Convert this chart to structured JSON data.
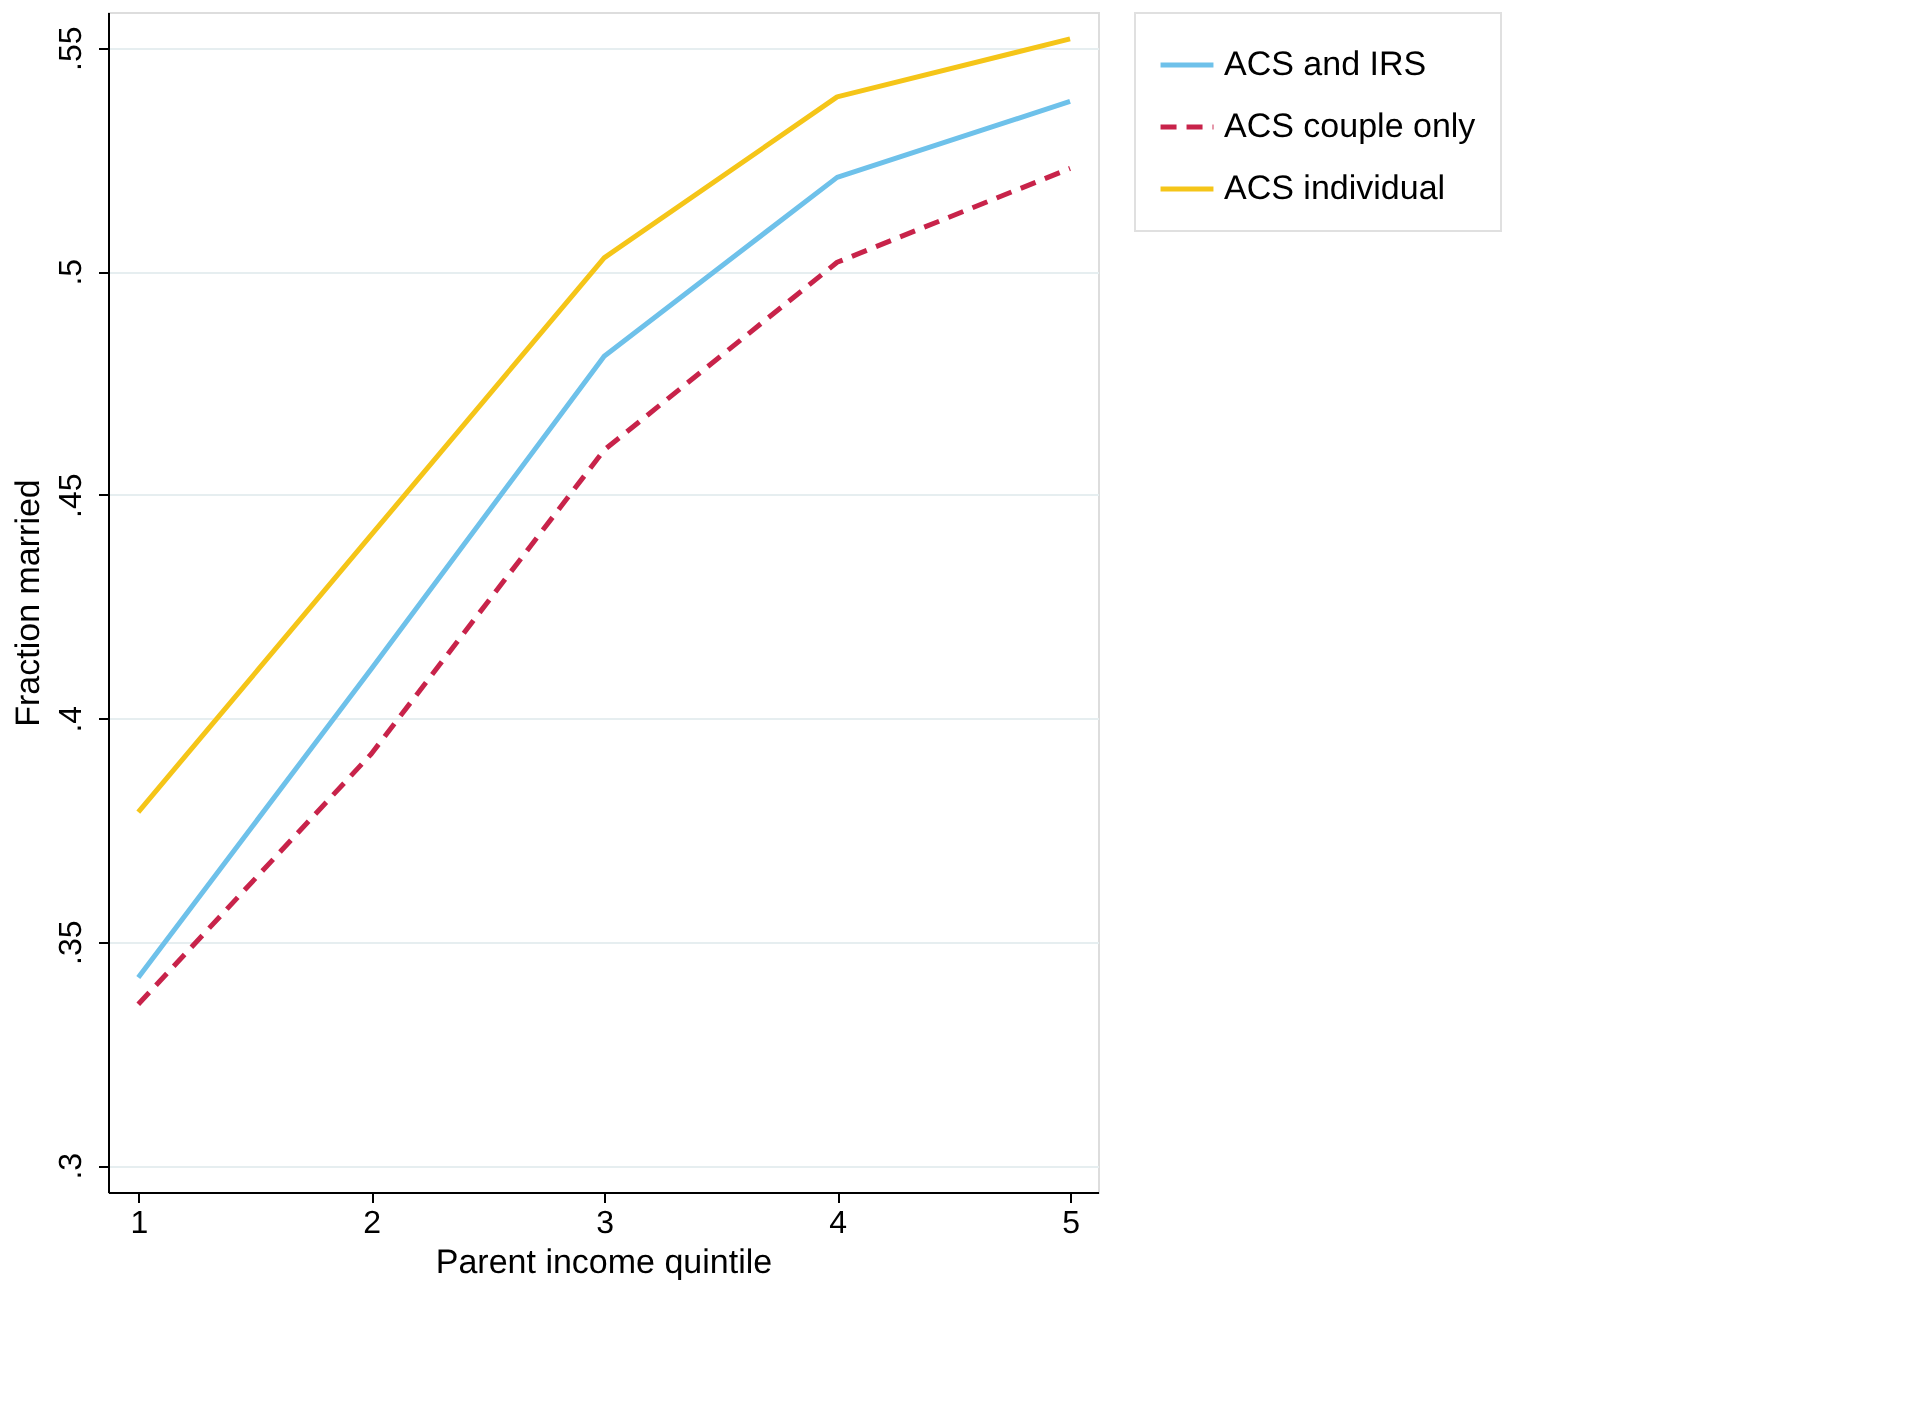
{
  "chart_data": {
    "type": "line",
    "xlabel": "Parent income quintile",
    "ylabel": "Fraction married",
    "x": [
      1,
      2,
      3,
      4,
      5
    ],
    "series": [
      {
        "name": "ACS and IRS",
        "color": "#6ec1ea",
        "line_style": "solid",
        "values": [
          0.342,
          0.411,
          0.481,
          0.521,
          0.538
        ]
      },
      {
        "name": "ACS couple only",
        "color": "#c8234a",
        "line_style": "dashed",
        "values": [
          0.336,
          0.392,
          0.46,
          0.502,
          0.523
        ]
      },
      {
        "name": "ACS individual",
        "color": "#f5c518",
        "line_style": "solid",
        "values": [
          0.379,
          0.441,
          0.503,
          0.539,
          0.552
        ]
      }
    ],
    "xlim": [
      0.87,
      5.12
    ],
    "xticks": [
      1,
      2,
      3,
      4,
      5
    ],
    "ylim": [
      0.294,
      0.558
    ],
    "yticks": [
      {
        "value": 0.3,
        "label": ".3"
      },
      {
        "value": 0.35,
        "label": ".35"
      },
      {
        "value": 0.4,
        "label": ".4"
      },
      {
        "value": 0.45,
        "label": ".45"
      },
      {
        "value": 0.5,
        "label": ".5"
      },
      {
        "value": 0.55,
        "label": ".55"
      }
    ],
    "grid": "y",
    "legend": "right",
    "marker": "none"
  }
}
